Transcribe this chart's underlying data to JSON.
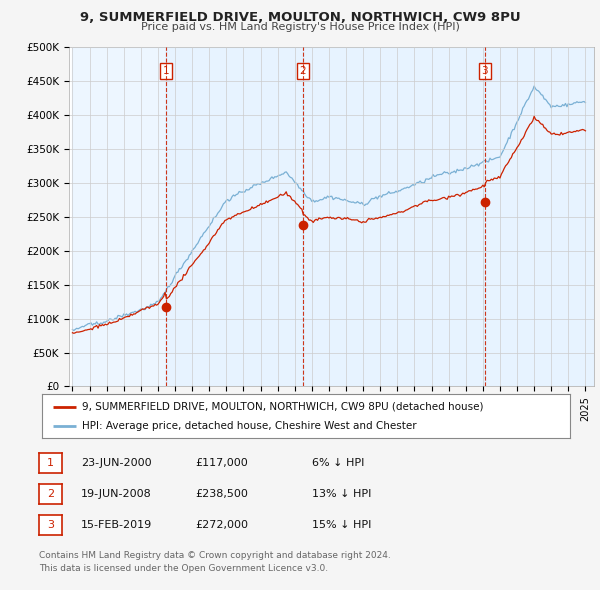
{
  "title": "9, SUMMERFIELD DRIVE, MOULTON, NORTHWICH, CW9 8PU",
  "subtitle": "Price paid vs. HM Land Registry's House Price Index (HPI)",
  "ylim": [
    0,
    500000
  ],
  "yticks": [
    0,
    50000,
    100000,
    150000,
    200000,
    250000,
    300000,
    350000,
    400000,
    450000,
    500000
  ],
  "ytick_labels": [
    "£0",
    "£50K",
    "£100K",
    "£150K",
    "£200K",
    "£250K",
    "£300K",
    "£350K",
    "£400K",
    "£450K",
    "£500K"
  ],
  "sales": [
    {
      "date": 2000.47,
      "price": 117000,
      "label": "1"
    },
    {
      "date": 2008.46,
      "price": 238500,
      "label": "2"
    },
    {
      "date": 2019.12,
      "price": 272000,
      "label": "3"
    }
  ],
  "sale_vline_color": "#cc2200",
  "sale_marker_color": "#cc2200",
  "hpi_line_color": "#7ab0d4",
  "price_line_color": "#cc2200",
  "shade_color": "#ddeeff",
  "legend_label_price": "9, SUMMERFIELD DRIVE, MOULTON, NORTHWICH, CW9 8PU (detached house)",
  "legend_label_hpi": "HPI: Average price, detached house, Cheshire West and Chester",
  "table_rows": [
    [
      "1",
      "23-JUN-2000",
      "£117,000",
      "6% ↓ HPI"
    ],
    [
      "2",
      "19-JUN-2008",
      "£238,500",
      "13% ↓ HPI"
    ],
    [
      "3",
      "15-FEB-2019",
      "£272,000",
      "15% ↓ HPI"
    ]
  ],
  "footer": "Contains HM Land Registry data © Crown copyright and database right 2024.\nThis data is licensed under the Open Government Licence v3.0.",
  "background_color": "#f5f5f5",
  "plot_bg_color": "#ffffff",
  "grid_color": "#dddddd"
}
